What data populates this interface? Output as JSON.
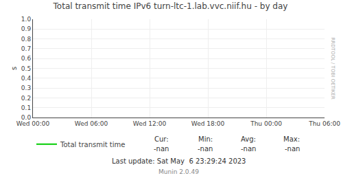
{
  "chart_data": {
    "type": "line",
    "title": "Total transmit time IPv6 turn-ltc-1.lab.vvc.niif.hu - by day",
    "ylabel": "s",
    "categories": [
      "Wed 00:00",
      "Wed 06:00",
      "Wed 12:00",
      "Wed 18:00",
      "Thu 00:00",
      "Thu 06:00"
    ],
    "series": [
      {
        "name": "Total transmit time",
        "color": "#00cc00",
        "values": [
          null,
          null,
          null,
          null,
          null,
          null
        ]
      }
    ],
    "ylim": [
      0.0,
      1.0
    ],
    "yticks": [
      {
        "value": 0.0,
        "label": "0.0"
      },
      0.1,
      0.2,
      0.3,
      0.4,
      0.5,
      0.6,
      0.7,
      0.8,
      0.9,
      {
        "value": 1.0,
        "label": "1.0"
      }
    ],
    "grid": true,
    "stats": [
      {
        "label": "Cur:",
        "text": "-nan"
      },
      {
        "label": "Min:",
        "text": "-nan"
      },
      {
        "label": "Avg:",
        "text": "-nan"
      },
      {
        "label": "Max:",
        "text": "-nan"
      }
    ],
    "annotations": [
      "Last update: Sat May  6 23:29:24 2023",
      "Munin 2.0.49"
    ],
    "watermark": "RRDTOOL / TOBI OETIKER"
  }
}
